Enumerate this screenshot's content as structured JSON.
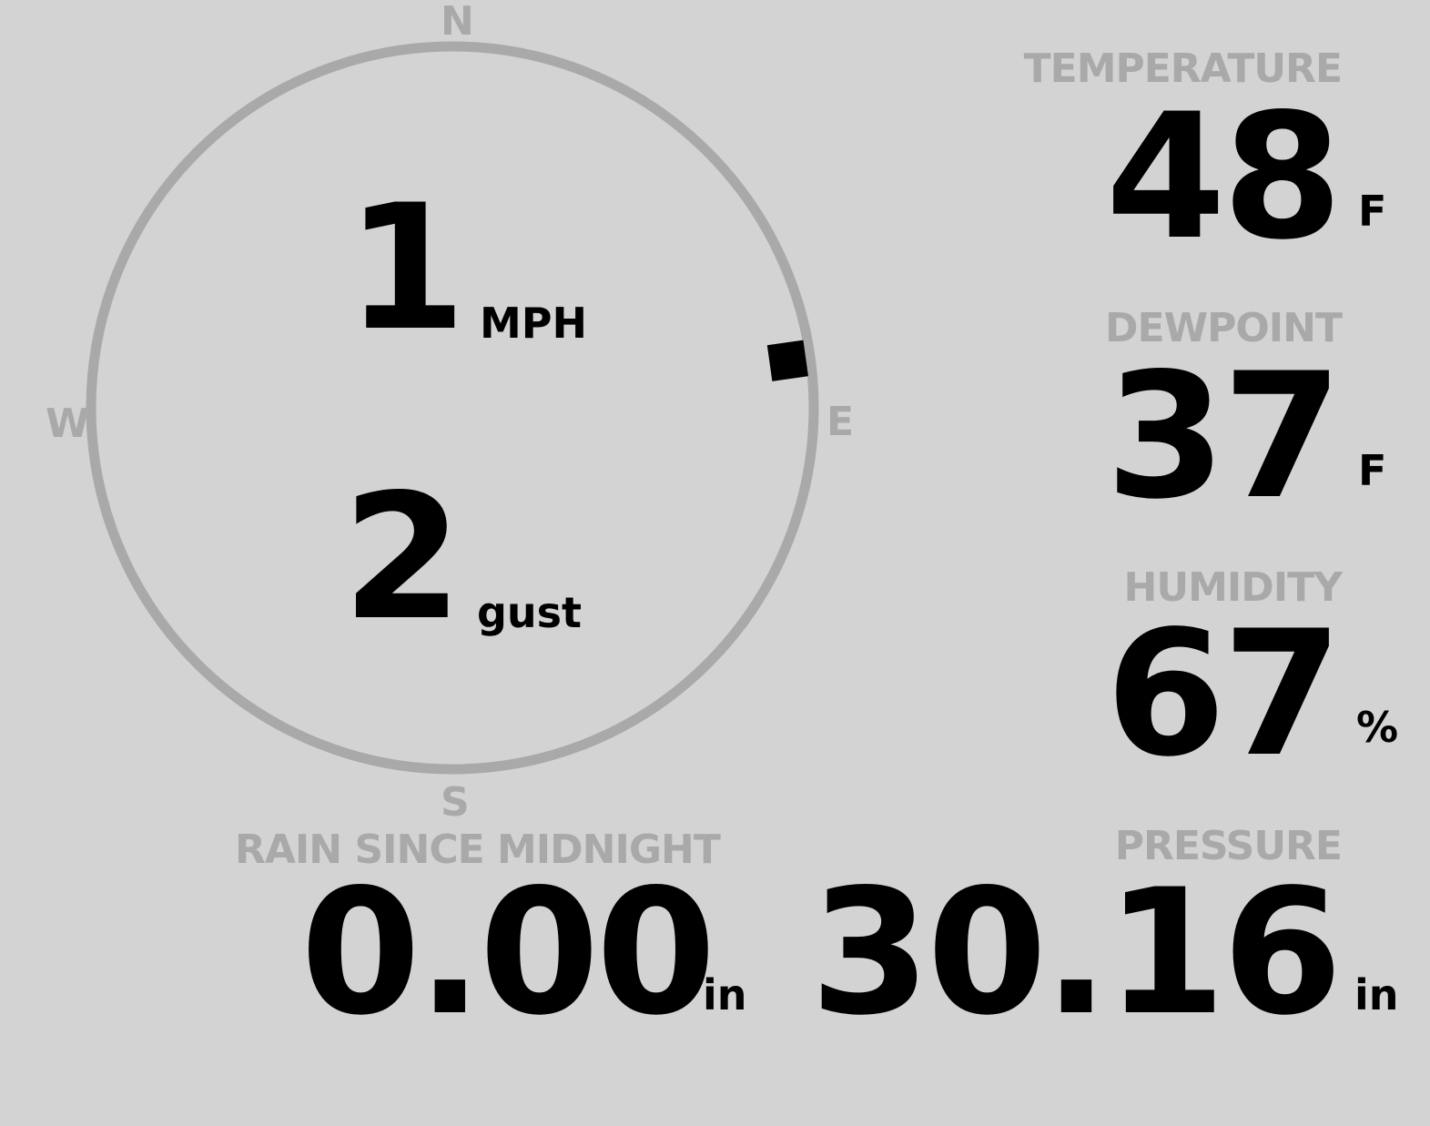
{
  "wind": {
    "speed": "1",
    "speed_unit": "MPH",
    "gust": "2",
    "gust_unit": "gust",
    "direction_degrees": 82,
    "compass": {
      "n": "N",
      "e": "E",
      "s": "S",
      "w": "W"
    }
  },
  "temperature": {
    "label": "TEMPERATURE",
    "value": "48",
    "unit": "F"
  },
  "dewpoint": {
    "label": "DEWPOINT",
    "value": "37",
    "unit": "F"
  },
  "humidity": {
    "label": "HUMIDITY",
    "value": "67",
    "unit": "%"
  },
  "rain": {
    "label": "RAIN SINCE MIDNIGHT",
    "value": "0.00",
    "unit": "in"
  },
  "pressure": {
    "label": "PRESSURE",
    "value": "30.16",
    "unit": "in"
  },
  "colors": {
    "background": "#d3d3d3",
    "label": "#a9a9a9",
    "value": "#000000"
  }
}
